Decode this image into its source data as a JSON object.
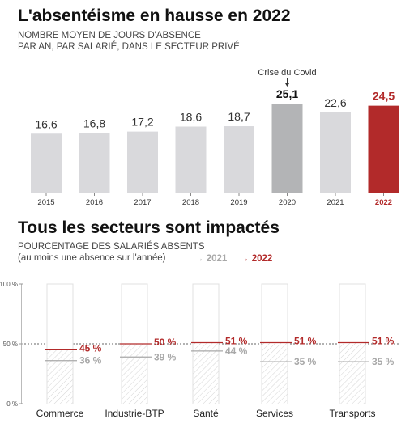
{
  "colors": {
    "bar_grey": "#d9d9dc",
    "covid_grey": "#b3b4b6",
    "highlight_red": "#b22a2a",
    "muted": "#a8a8a8",
    "axis": "#555555"
  },
  "chart_data": [
    {
      "type": "bar",
      "title": "L'absentéisme en hausse en 2022",
      "subtitle_lines": [
        "NOMBRE MOYEN DE JOURS D'ABSENCE",
        "PAR AN, PAR SALARIÉ, DANS LE SECTEUR PRIVÉ"
      ],
      "categories": [
        "2015",
        "2016",
        "2017",
        "2018",
        "2019",
        "2020",
        "2021",
        "2022"
      ],
      "values": [
        16.6,
        16.8,
        17.2,
        18.6,
        18.7,
        25.1,
        22.6,
        24.5
      ],
      "value_labels": [
        "16,6",
        "16,8",
        "17,2",
        "18,6",
        "18,7",
        "25,1",
        "22,6",
        "24,5"
      ],
      "annotation": "Crise du Covid",
      "ylim": [
        0,
        27
      ]
    },
    {
      "type": "bar",
      "title": "Tous les secteurs sont impactés",
      "subtitle_lines": [
        "POURCENTAGE DES SALARIÉS ABSENTS",
        "(au moins une absence sur l'année)"
      ],
      "legend": [
        "2021",
        "2022"
      ],
      "y_ticks": [
        "100 %",
        "50 %",
        "0 %"
      ],
      "ylim": [
        0,
        100
      ],
      "reference_line": 50,
      "categories": [
        "Commerce",
        "Industrie-BTP",
        "Santé",
        "Services",
        "Transports"
      ],
      "series": [
        {
          "name": "2021",
          "values": [
            36,
            39,
            44,
            35,
            35
          ],
          "labels": [
            "36 %",
            "39 %",
            "44 %",
            "35 %",
            "35 %"
          ]
        },
        {
          "name": "2022",
          "values": [
            45,
            50,
            51,
            51,
            51
          ],
          "labels": [
            "45 %",
            "50 %",
            "51 %",
            "51 %",
            "51 %"
          ]
        }
      ]
    }
  ]
}
